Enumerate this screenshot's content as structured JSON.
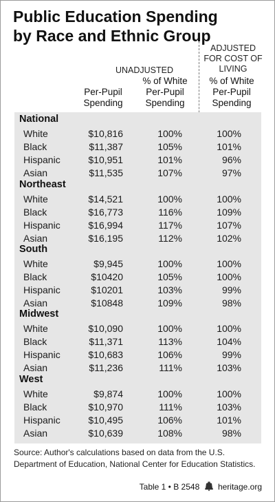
{
  "title": "Public Education Spending by Race and Ethnic Group",
  "headers": {
    "unadjusted": "UNADJUSTED",
    "adjusted": "ADJUSTED FOR COST OF LIVING",
    "per_pupil": "Per-Pupil Spending",
    "pct_white": "% of White Per-Pupil Spending",
    "pct_white_adj": "% of White Per-Pupil Spending"
  },
  "sections": [
    {
      "region": "National",
      "rows": [
        {
          "group": "White",
          "spending": "$10,816",
          "pct": "100%",
          "adj": "100%"
        },
        {
          "group": "Black",
          "spending": "$11,387",
          "pct": "105%",
          "adj": "101%"
        },
        {
          "group": "Hispanic",
          "spending": "$10,951",
          "pct": "101%",
          "adj": "96%"
        },
        {
          "group": "Asian",
          "spending": "$11,535",
          "pct": "107%",
          "adj": "97%"
        }
      ]
    },
    {
      "region": "Northeast",
      "rows": [
        {
          "group": "White",
          "spending": "$14,521",
          "pct": "100%",
          "adj": "100%"
        },
        {
          "group": "Black",
          "spending": "$16,773",
          "pct": "116%",
          "adj": "109%"
        },
        {
          "group": "Hispanic",
          "spending": "$16,994",
          "pct": "117%",
          "adj": "107%"
        },
        {
          "group": "Asian",
          "spending": "$16,195",
          "pct": "112%",
          "adj": "102%"
        }
      ]
    },
    {
      "region": "South",
      "rows": [
        {
          "group": "White",
          "spending": "$9,945",
          "pct": "100%",
          "adj": "100%"
        },
        {
          "group": "Black",
          "spending": "$10420",
          "pct": "105%",
          "adj": "100%"
        },
        {
          "group": "Hispanic",
          "spending": "$10201",
          "pct": "103%",
          "adj": "99%"
        },
        {
          "group": "Asian",
          "spending": "$10848",
          "pct": "109%",
          "adj": "98%"
        }
      ]
    },
    {
      "region": "Midwest",
      "rows": [
        {
          "group": "White",
          "spending": "$10,090",
          "pct": "100%",
          "adj": "100%"
        },
        {
          "group": "Black",
          "spending": "$11,371",
          "pct": "113%",
          "adj": "104%"
        },
        {
          "group": "Hispanic",
          "spending": "$10,683",
          "pct": "106%",
          "adj": "99%"
        },
        {
          "group": "Asian",
          "spending": "$11,236",
          "pct": "111%",
          "adj": "103%"
        }
      ]
    },
    {
      "region": "West",
      "rows": [
        {
          "group": "White",
          "spending": "$9,874",
          "pct": "100%",
          "adj": "100%"
        },
        {
          "group": "Black",
          "spending": "$10,970",
          "pct": "111%",
          "adj": "103%"
        },
        {
          "group": "Hispanic",
          "spending": "$10,495",
          "pct": "106%",
          "adj": "101%"
        },
        {
          "group": "Asian",
          "spending": "$10,639",
          "pct": "108%",
          "adj": "98%"
        }
      ]
    }
  ],
  "source": "Source: Author's calculations based on data from the U.S. Department of Education, National Center for Education Statistics.",
  "footer": {
    "table_ref": "Table 1 • B 2548",
    "site": "heritage.org",
    "logo_icon": "liberty-bell-icon"
  }
}
